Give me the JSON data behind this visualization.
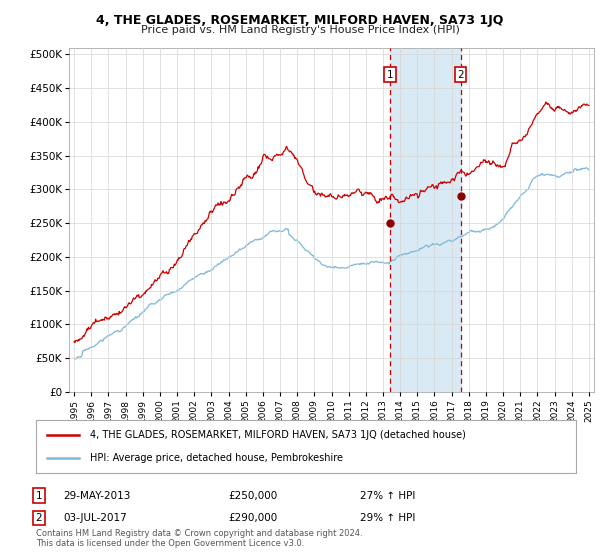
{
  "title": "4, THE GLADES, ROSEMARKET, MILFORD HAVEN, SA73 1JQ",
  "subtitle": "Price paid vs. HM Land Registry's House Price Index (HPI)",
  "legend_line1": "4, THE GLADES, ROSEMARKET, MILFORD HAVEN, SA73 1JQ (detached house)",
  "legend_line2": "HPI: Average price, detached house, Pembrokeshire",
  "annotation1_date": "29-MAY-2013",
  "annotation1_price": "£250,000",
  "annotation1_hpi": "27% ↑ HPI",
  "annotation2_date": "03-JUL-2017",
  "annotation2_price": "£290,000",
  "annotation2_hpi": "29% ↑ HPI",
  "footnote": "Contains HM Land Registry data © Crown copyright and database right 2024.\nThis data is licensed under the Open Government Licence v3.0.",
  "hpi_color": "#7fb8d8",
  "price_color": "#cc0000",
  "shaded_color": "#daeaf5",
  "annotation_color": "#cc0000",
  "background_color": "#ffffff",
  "grid_color": "#d5d5d5",
  "ylim": [
    0,
    510000
  ],
  "yticks": [
    0,
    50000,
    100000,
    150000,
    200000,
    250000,
    300000,
    350000,
    400000,
    450000,
    500000
  ],
  "sale1_year": 2013.41,
  "sale1_price": 250000,
  "sale2_year": 2017.52,
  "sale2_price": 290000,
  "shade_start": 2013.41,
  "shade_end": 2017.52,
  "xlim_left": 1994.7,
  "xlim_right": 2025.3
}
